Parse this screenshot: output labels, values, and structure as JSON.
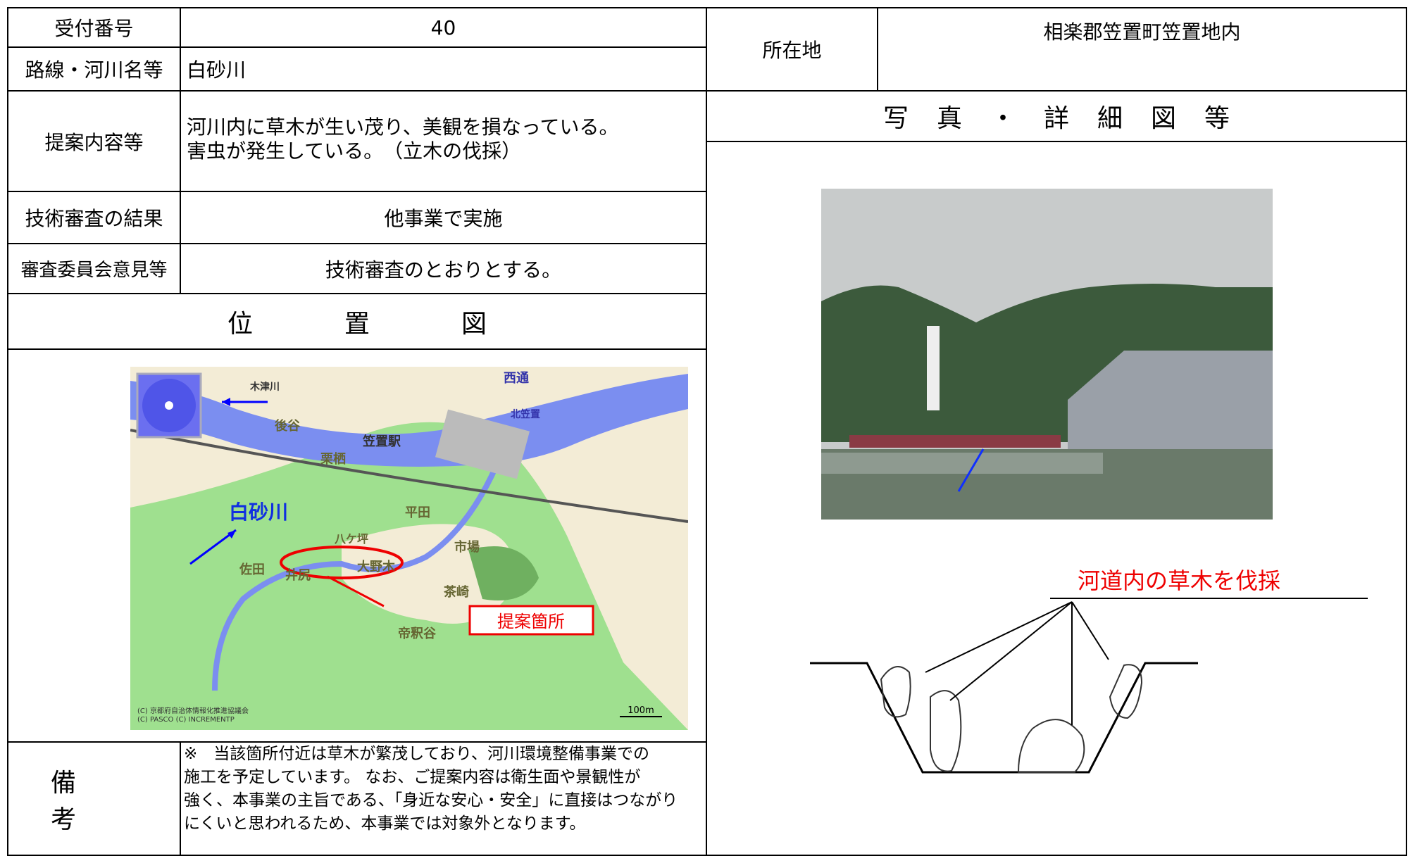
{
  "left": {
    "receipt_no": {
      "label": "受付番号",
      "value": "40"
    },
    "route": {
      "label": "路線・河川名等",
      "value": "白砂川"
    },
    "proposal": {
      "label": "提案内容等",
      "lines": [
        "河川内に草木が生い茂り、美観を損なっている。",
        "害虫が発生している。　（立木の伐採）"
      ]
    },
    "review": {
      "label": "技術審査の結果",
      "value": "他事業で実施"
    },
    "committee": {
      "label": "審査委員会意見等",
      "value": "技術審査のとおりとする。"
    },
    "location_map": {
      "title": "位置図",
      "labels": [
        "木津川",
        "後谷",
        "笠置駅",
        "西通",
        "北笠置",
        "栗栖",
        "白砂川",
        "平田",
        "市場",
        "大野木",
        "佐田",
        "井尻",
        "茶崎",
        "帝釈谷",
        "八ケ坪"
      ],
      "callout": "提案箇所",
      "copyright": [
        "(C) 京都府自治体情報化推進協議会",
        "(C) PASCO (C) INCREMENTP"
      ],
      "scale": "100m"
    },
    "remarks": {
      "label": "備考",
      "lines": [
        "※　当該箇所付近は草木が繁茂しており、河川環境整備事業での",
        "施工を予定しています。 なお、ご提案内容は衛生面や景観性が",
        "強く、本事業の主旨である、「身近な安心・安全」に直接はつながり",
        "にくいと思われるため、本事業では対象外となります。"
      ]
    }
  },
  "right": {
    "location": {
      "label": "所在地",
      "value": "相楽郡笠置町笠置地内"
    },
    "photo_title": "写真・詳細図等",
    "diagram_label": "河道内の草木を伐採"
  }
}
